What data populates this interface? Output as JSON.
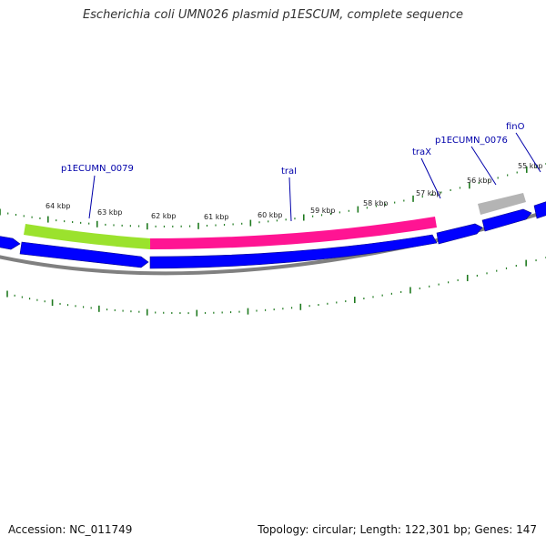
{
  "title": "Escherichia coli UMN026 plasmid p1ESCUM, complete sequence",
  "footer": {
    "accession": "Accession: NC_011749",
    "stats": "Topology: circular; Length: 122,301 bp; Genes: 147"
  },
  "colors": {
    "forward_cds": "#0000ff",
    "reverse_cds": "#0000ff",
    "p1ECUMN_0079": "#9be22d",
    "traI": "#ff1493",
    "p1ECUMN_0076": "#b4b4b4",
    "backbone": "#808080",
    "tick": "#1f7a1f",
    "gene_label": "#0000aa",
    "kbp_label": "#222222"
  },
  "kbp_labels": [
    "64 kbp",
    "63 kbp",
    "62 kbp",
    "61 kbp",
    "60 kbp",
    "59 kbp",
    "58 kbp",
    "57 kbp",
    "56 kbp",
    "55 kbp"
  ],
  "gene_labels": [
    "p1ECUMN_0079",
    "traI",
    "traX",
    "p1ECUMN_0076",
    "finO"
  ]
}
